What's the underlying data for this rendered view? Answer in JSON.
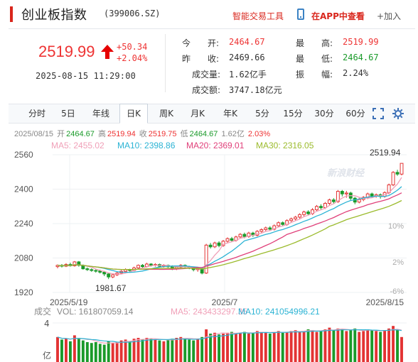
{
  "header": {
    "name": "创业板指数",
    "code": "(399006.SZ)",
    "smart_trade": "智能交易工具",
    "app_view": "在APP中查看",
    "add": "+加入"
  },
  "quote": {
    "price": "2519.99",
    "change": "+50.34",
    "change_pct": "+2.04%",
    "datetime": "2025-08-15 11:29:00",
    "open_label": "今　　开:",
    "open": "2464.67",
    "prev_label": "昨　　收:",
    "prev_close": "2469.66",
    "volume_label": "成交量:",
    "volume": "1.62亿手",
    "amount_label": "成交额:",
    "amount": "3747.18亿元",
    "high_label": "最　　高:",
    "high": "2519.99",
    "low_label": "最　　低:",
    "low": "2464.67",
    "amp_label": "振　　幅:",
    "amplitude": "2.24%"
  },
  "tabs": [
    "分时",
    "5日",
    "年线",
    "日K",
    "周K",
    "月K",
    "年K",
    "5分",
    "15分",
    "30分",
    "60分"
  ],
  "active_tab": "日K",
  "ohlc": {
    "date": "2025/08/15",
    "open_label": "开",
    "open": "2464.67",
    "high_label": "高",
    "high": "2519.94",
    "close_label": "收",
    "close": "2519.75",
    "low_label": "低",
    "low": "2464.67",
    "vol": "1.62亿",
    "pct": "2.03%"
  },
  "ma_legend": {
    "ma5": "MA5: 2455.02",
    "ma10": "MA10: 2398.86",
    "ma20": "MA20: 2369.01",
    "ma30": "MA30: 2316.05"
  },
  "colors": {
    "up": "#e33333",
    "down": "#1a9a2a",
    "ma5": "#f0a0b8",
    "ma10": "#2bb3d4",
    "ma20": "#e0407a",
    "ma30": "#9bbb2c"
  },
  "watermark": "新浪财经",
  "volume_legend": {
    "title": "成交",
    "vol": "VOL: 161807059.14",
    "ma5": "MA5: 243433297.35",
    "ma10": "MA10: 241054996.21",
    "y_top": "4",
    "y_unit": "亿"
  },
  "chart_data": {
    "type": "candlestick",
    "y_ticks": [
      "2560",
      "2400",
      "2240",
      "2080",
      "1920"
    ],
    "ylim": [
      1920,
      2560
    ],
    "pct_ticks": [
      "10%",
      "2%",
      "-6%"
    ],
    "x_ticks": [
      "2025/5/19",
      "2025/7",
      "2025/8/15"
    ],
    "max_label": "2519.94",
    "min_label": "1981.67",
    "candles": [
      [
        2040,
        2046,
        2032,
        2050
      ],
      [
        2046,
        2042,
        2036,
        2052
      ],
      [
        2042,
        2050,
        2038,
        2056
      ],
      [
        2050,
        2044,
        2040,
        2058
      ],
      [
        2044,
        2062,
        2040,
        2066
      ],
      [
        2062,
        2046,
        2040,
        2066
      ],
      [
        2046,
        2030,
        2026,
        2050
      ],
      [
        2030,
        2026,
        2020,
        2036
      ],
      [
        2026,
        2022,
        2016,
        2032
      ],
      [
        2022,
        2020,
        2012,
        2028
      ],
      [
        2020,
        2014,
        2008,
        2026
      ],
      [
        2014,
        2006,
        1996,
        2020
      ],
      [
        2006,
        1992,
        1982,
        2010
      ],
      [
        1992,
        2002,
        1986,
        2008
      ],
      [
        2002,
        2010,
        1996,
        2016
      ],
      [
        2010,
        2018,
        2004,
        2024
      ],
      [
        2018,
        2026,
        2012,
        2032
      ],
      [
        2026,
        2022,
        2014,
        2030
      ],
      [
        2022,
        2034,
        2018,
        2040
      ],
      [
        2034,
        2046,
        2028,
        2050
      ],
      [
        2046,
        2040,
        2034,
        2052
      ],
      [
        2040,
        2052,
        2036,
        2058
      ],
      [
        2052,
        2046,
        2040,
        2056
      ],
      [
        2046,
        2050,
        2040,
        2056
      ],
      [
        2050,
        2042,
        2036,
        2054
      ],
      [
        2042,
        2046,
        2036,
        2052
      ],
      [
        2046,
        2040,
        2034,
        2050
      ],
      [
        2040,
        2030,
        2024,
        2046
      ],
      [
        2030,
        2038,
        2024,
        2044
      ],
      [
        2038,
        2046,
        2032,
        2052
      ],
      [
        2046,
        2040,
        2034,
        2050
      ],
      [
        2040,
        2034,
        2028,
        2044
      ],
      [
        2034,
        2026,
        2018,
        2040
      ],
      [
        2026,
        2032,
        2016,
        2038
      ],
      [
        2032,
        2010,
        2004,
        2036
      ],
      [
        2010,
        2140,
        2006,
        2146
      ],
      [
        2140,
        2132,
        2124,
        2150
      ],
      [
        2132,
        2150,
        2126,
        2156
      ],
      [
        2150,
        2138,
        2130,
        2158
      ],
      [
        2138,
        2158,
        2132,
        2164
      ],
      [
        2158,
        2170,
        2150,
        2176
      ],
      [
        2170,
        2162,
        2154,
        2178
      ],
      [
        2162,
        2178,
        2156,
        2184
      ],
      [
        2178,
        2190,
        2170,
        2196
      ],
      [
        2190,
        2180,
        2172,
        2198
      ],
      [
        2180,
        2196,
        2174,
        2202
      ],
      [
        2196,
        2186,
        2178,
        2202
      ],
      [
        2186,
        2204,
        2180,
        2210
      ],
      [
        2204,
        2212,
        2196,
        2218
      ],
      [
        2212,
        2220,
        2204,
        2226
      ],
      [
        2220,
        2214,
        2206,
        2228
      ],
      [
        2214,
        2230,
        2208,
        2236
      ],
      [
        2230,
        2244,
        2224,
        2250
      ],
      [
        2244,
        2236,
        2228,
        2250
      ],
      [
        2236,
        2254,
        2230,
        2260
      ],
      [
        2254,
        2262,
        2246,
        2268
      ],
      [
        2262,
        2270,
        2254,
        2276
      ],
      [
        2270,
        2282,
        2262,
        2288
      ],
      [
        2282,
        2294,
        2274,
        2300
      ],
      [
        2294,
        2286,
        2278,
        2302
      ],
      [
        2286,
        2304,
        2280,
        2312
      ],
      [
        2304,
        2320,
        2296,
        2326
      ],
      [
        2320,
        2314,
        2306,
        2330
      ],
      [
        2314,
        2334,
        2308,
        2340
      ],
      [
        2334,
        2350,
        2326,
        2356
      ],
      [
        2350,
        2342,
        2334,
        2358
      ],
      [
        2342,
        2390,
        2336,
        2396
      ],
      [
        2390,
        2378,
        2366,
        2396
      ],
      [
        2378,
        2382,
        2360,
        2392
      ],
      [
        2382,
        2358,
        2346,
        2388
      ],
      [
        2358,
        2340,
        2330,
        2364
      ],
      [
        2340,
        2352,
        2334,
        2360
      ],
      [
        2352,
        2362,
        2344,
        2368
      ],
      [
        2362,
        2378,
        2354,
        2384
      ],
      [
        2378,
        2368,
        2360,
        2384
      ],
      [
        2368,
        2374,
        2360,
        2380
      ],
      [
        2374,
        2366,
        2356,
        2380
      ],
      [
        2366,
        2384,
        2360,
        2390
      ],
      [
        2384,
        2420,
        2376,
        2426
      ],
      [
        2420,
        2478,
        2414,
        2484
      ],
      [
        2478,
        2470,
        2462,
        2490
      ],
      [
        2470,
        2520,
        2464,
        2520
      ]
    ],
    "volumes": [
      0.62,
      0.56,
      0.58,
      0.52,
      0.66,
      0.6,
      0.54,
      0.5,
      0.48,
      0.5,
      0.46,
      0.44,
      0.52,
      0.48,
      0.5,
      0.54,
      0.56,
      0.52,
      0.58,
      0.6,
      0.56,
      0.6,
      0.58,
      0.56,
      0.54,
      0.52,
      0.56,
      0.58,
      0.6,
      0.62,
      0.58,
      0.56,
      0.54,
      0.58,
      0.62,
      0.8,
      0.7,
      0.72,
      0.68,
      0.7,
      0.72,
      0.74,
      0.7,
      0.72,
      0.74,
      0.7,
      0.72,
      0.76,
      0.74,
      0.72,
      0.7,
      0.74,
      0.76,
      0.72,
      0.74,
      0.76,
      0.78,
      0.74,
      0.76,
      0.8,
      0.78,
      0.74,
      0.76,
      0.8,
      0.84,
      0.78,
      0.82,
      0.8,
      0.76,
      0.78,
      0.82,
      0.74,
      0.76,
      0.8,
      0.78,
      0.76,
      0.74,
      0.78,
      0.82,
      0.88,
      0.8,
      0.62
    ]
  }
}
